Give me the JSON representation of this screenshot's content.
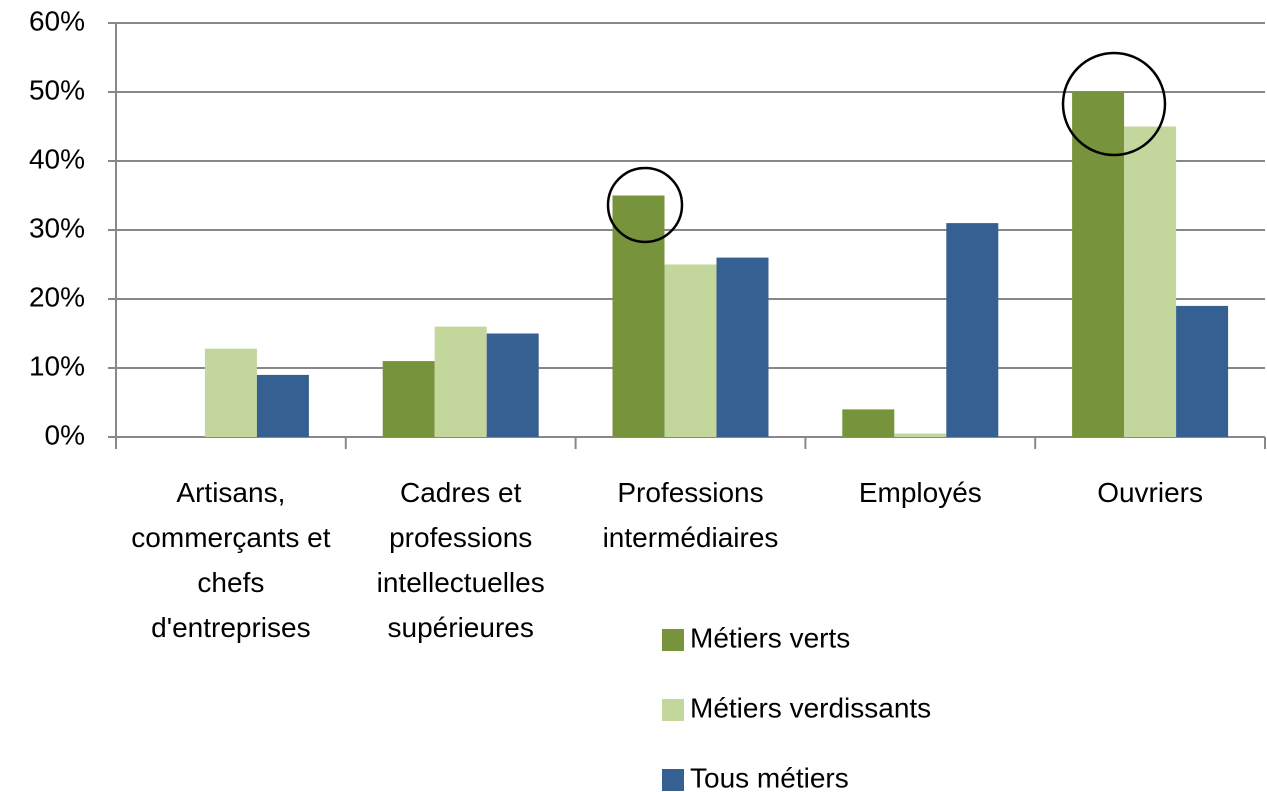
{
  "chart_data": {
    "type": "bar",
    "categories": [
      "Artisans, commerçants et chefs d'entreprises",
      "Cadres et professions intellectuelles supérieures",
      "Professions intermédiaires",
      "Employés",
      "Ouvriers"
    ],
    "series": [
      {
        "name": "Métiers verts",
        "color": "#77933c",
        "values": [
          0,
          11,
          35,
          4,
          50
        ]
      },
      {
        "name": "Métiers verdissants",
        "color": "#c3d69b",
        "values": [
          12.8,
          16,
          25,
          0.5,
          45
        ]
      },
      {
        "name": "Tous métiers",
        "color": "#376092",
        "values": [
          9,
          15,
          26,
          31,
          19
        ]
      }
    ],
    "ylim": [
      0,
      60
    ],
    "yticks": [
      {
        "value": 0,
        "label": "0%"
      },
      {
        "value": 10,
        "label": "10%"
      },
      {
        "value": 20,
        "label": "20%"
      },
      {
        "value": 30,
        "label": "30%"
      },
      {
        "value": 40,
        "label": "40%"
      },
      {
        "value": 50,
        "label": "50%"
      },
      {
        "value": 60,
        "label": "60%"
      }
    ],
    "grid": true
  }
}
